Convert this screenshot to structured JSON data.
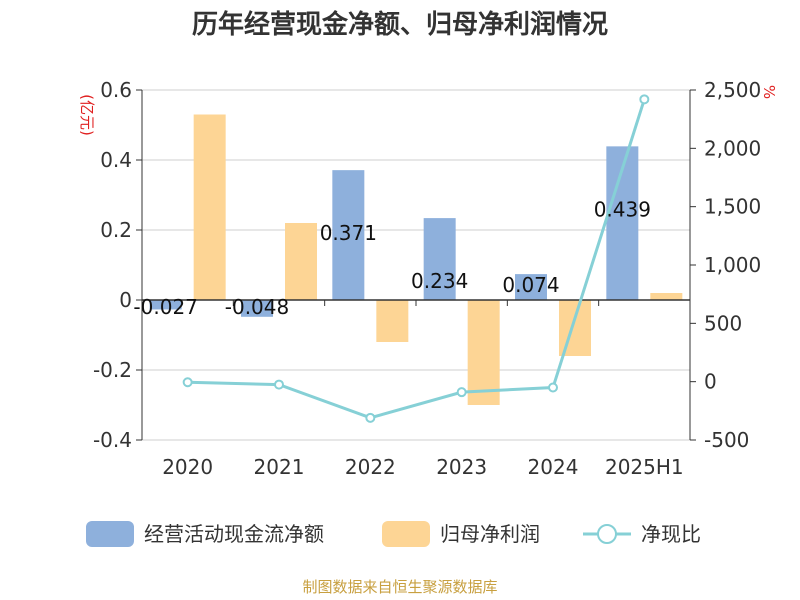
{
  "chart_data": {
    "type": "bar",
    "title": "历年经营现金净额、归母净利润情况",
    "left_axis_unit": "(亿元)",
    "right_axis_unit": "%",
    "categories": [
      "2020",
      "2021",
      "2022",
      "2023",
      "2024",
      "2025H1"
    ],
    "ylim_left": [
      -0.4,
      0.6
    ],
    "yticks_left": [
      "0.6",
      "0.4",
      "0.2",
      "0",
      "-0.2",
      "-0.4"
    ],
    "ylim_right": [
      -500,
      2500
    ],
    "yticks_right": [
      "2,500",
      "2,000",
      "1,500",
      "1,000",
      "500",
      "0",
      "-500"
    ],
    "grid": true,
    "legend_position": "bottom",
    "series": [
      {
        "name": "经营活动现金流净额",
        "kind": "bar",
        "axis": "left",
        "color": "#8eb0dc",
        "values": [
          -0.027,
          -0.048,
          0.371,
          0.234,
          0.074,
          0.439
        ],
        "labels": [
          "-0.027",
          "-0.048",
          "0.371",
          "0.234",
          "0.074",
          "0.439"
        ]
      },
      {
        "name": "归母净利润",
        "kind": "bar",
        "axis": "left",
        "color": "#fdd595",
        "values": [
          0.53,
          0.22,
          -0.12,
          -0.3,
          -0.16,
          0.02
        ]
      },
      {
        "name": "净现比",
        "kind": "line",
        "axis": "right",
        "color": "#86d0d6",
        "values": [
          -5,
          -25,
          -310,
          -90,
          -50,
          2420
        ]
      }
    ],
    "source": "制图数据来自恒生聚源数据库"
  }
}
